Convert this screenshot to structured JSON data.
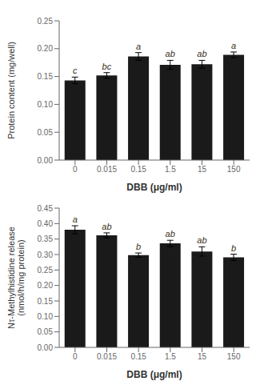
{
  "chart_data": [
    {
      "type": "bar",
      "categories": [
        "0",
        "0.015",
        "0.15",
        "1.5",
        "15",
        "150"
      ],
      "values": [
        0.143,
        0.152,
        0.186,
        0.171,
        0.172,
        0.189
      ],
      "errors": [
        0.006,
        0.005,
        0.007,
        0.008,
        0.007,
        0.005
      ],
      "annotations": [
        "c",
        "bc",
        "a",
        "ab",
        "ab",
        "a"
      ],
      "xlabel": "DBB (μg/ml)",
      "ylabel": "Protein content  (mg/well)",
      "ylim": [
        0.0,
        0.25
      ],
      "yticks": [
        {
          "value": 0.0,
          "label": "0.00"
        },
        0.05,
        {
          "value": 0.1,
          "label": "0.10"
        },
        0.15,
        {
          "value": 0.2,
          "label": "0.20"
        },
        0.25
      ],
      "color": "#1a1a1a"
    },
    {
      "type": "bar",
      "categories": [
        "0",
        "0.015",
        "0.15",
        "1.5",
        "15",
        "150"
      ],
      "values": [
        0.38,
        0.362,
        0.298,
        0.336,
        0.31,
        0.291
      ],
      "errors": [
        0.013,
        0.008,
        0.007,
        0.01,
        0.015,
        0.01
      ],
      "annotations": [
        "a",
        "ab",
        "b",
        "ab",
        "ab",
        "b"
      ],
      "xlabel": "DBB (μg/ml)",
      "ylabel": "Nτ-Methylhistidine release\n(nmol/h/mg protein)",
      "ylim": [
        0.0,
        0.45
      ],
      "yticks": [
        {
          "value": 0.0,
          "label": "0.00"
        },
        0.05,
        {
          "value": 0.1,
          "label": "0.10"
        },
        0.15,
        {
          "value": 0.2,
          "label": "0.20"
        },
        0.25,
        {
          "value": 0.3,
          "label": "0.30"
        },
        0.35,
        {
          "value": 0.4,
          "label": "0.40"
        },
        0.45
      ],
      "color": "#1a1a1a"
    }
  ]
}
